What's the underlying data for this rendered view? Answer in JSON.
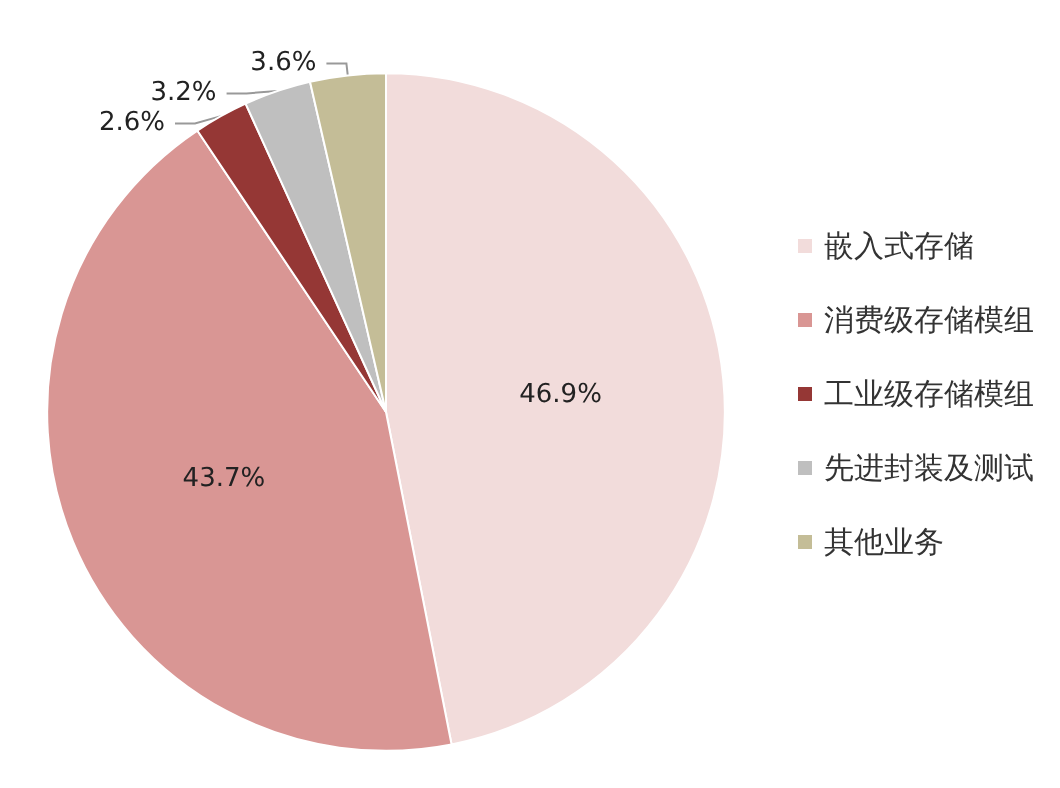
{
  "chart_data": {
    "type": "pie",
    "categories": [
      "嵌入式存储",
      "消费级存储模组",
      "工业级存储模组",
      "先进封装及测试",
      "其他业务"
    ],
    "values": [
      46.9,
      43.7,
      2.6,
      3.2,
      3.6
    ],
    "colors": [
      "#f2dcdb",
      "#d99694",
      "#953735",
      "#bfbfbf",
      "#c4bd97"
    ],
    "value_labels": [
      "46.9%",
      "43.7%",
      "2.6%",
      "3.2%",
      "3.6%"
    ],
    "legend": "right"
  }
}
